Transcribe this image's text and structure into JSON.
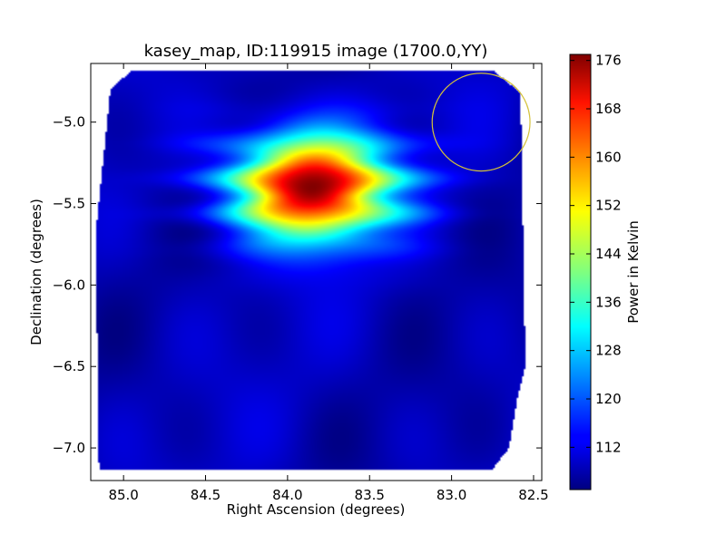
{
  "chart_data": {
    "type": "heatmap",
    "title": "kasey_map, ID:119915 image (1700.0,YY)",
    "xlabel": "Right Ascension (degrees)",
    "ylabel": "Declination (degrees)",
    "xlim": [
      85.2,
      82.45
    ],
    "ylim": [
      -7.2,
      -4.64
    ],
    "x_ticks": [
      85.0,
      84.5,
      84.0,
      83.5,
      83.0,
      82.5
    ],
    "x_tick_labels": [
      "85.0",
      "84.5",
      "84.0",
      "83.5",
      "83.0",
      "82.5"
    ],
    "y_ticks": [
      -5.0,
      -5.5,
      -6.0,
      -6.5,
      -7.0
    ],
    "y_tick_labels": [
      "−5.0",
      "−5.5",
      "−6.0",
      "−6.5",
      "−7.0"
    ],
    "grid": false,
    "colormap": "jet",
    "colorbar": {
      "label": "Power in Kelvin",
      "min": 105,
      "max": 177,
      "ticks": [
        112,
        120,
        128,
        136,
        144,
        152,
        160,
        168,
        176
      ],
      "tick_labels": [
        "112",
        "120",
        "128",
        "136",
        "144",
        "152",
        "160",
        "168",
        "176"
      ]
    },
    "background_level": 109,
    "sources": [
      {
        "ra": 83.85,
        "dec": -5.4,
        "peak": 177,
        "sigma_ra": 0.33,
        "sigma_dec": 0.22
      }
    ],
    "footprint": [
      {
        "ra": 84.95,
        "dec": -4.68
      },
      {
        "ra": 82.75,
        "dec": -4.68
      },
      {
        "ra": 82.58,
        "dec": -4.82
      },
      {
        "ra": 82.55,
        "dec": -6.5
      },
      {
        "ra": 82.6,
        "dec": -6.7
      },
      {
        "ra": 82.65,
        "dec": -7.0
      },
      {
        "ra": 82.75,
        "dec": -7.13
      },
      {
        "ra": 85.15,
        "dec": -7.13
      },
      {
        "ra": 85.17,
        "dec": -5.68
      },
      {
        "ra": 85.08,
        "dec": -4.8
      }
    ],
    "circle_overlay": {
      "ra": 82.82,
      "dec": -5.0,
      "radius_deg": 0.3,
      "color": "#d4c23a"
    }
  }
}
